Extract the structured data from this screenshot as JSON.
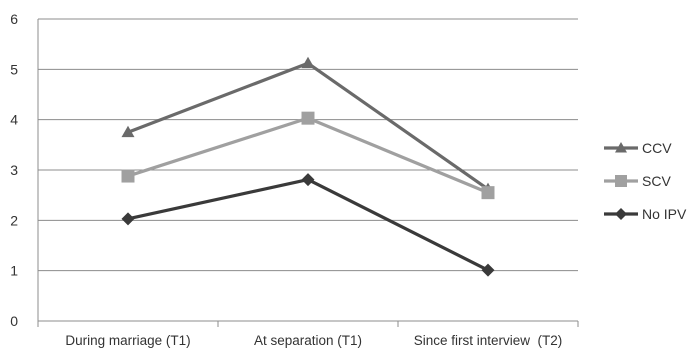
{
  "chart_data": {
    "type": "line",
    "categories": [
      "During marriage (T1)",
      "At separation (T1)",
      "Since first interview  (T2)"
    ],
    "series": [
      {
        "name": "CCV",
        "values": [
          3.75,
          5.12,
          2.62
        ],
        "color": "#6a6a6a",
        "marker": "triangle"
      },
      {
        "name": "SCV",
        "values": [
          2.88,
          4.03,
          2.55
        ],
        "color": "#a0a0a0",
        "marker": "square"
      },
      {
        "name": "No IPV",
        "values": [
          2.03,
          2.81,
          1.01
        ],
        "color": "#3a3a3a",
        "marker": "diamond"
      }
    ],
    "ylim": [
      0,
      6
    ],
    "yticks": [
      0,
      1,
      2,
      3,
      4,
      5,
      6
    ],
    "grid": true,
    "legend_position": "right",
    "title": "",
    "xlabel": "",
    "ylabel": ""
  }
}
